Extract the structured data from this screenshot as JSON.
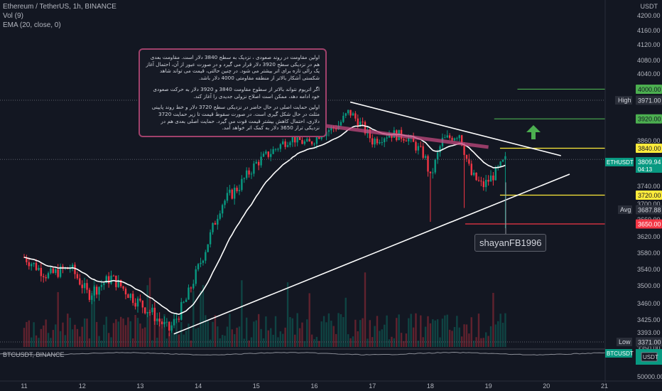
{
  "header": {
    "symbol_line": "Ethereum / TetherUS, 1h, BINANCE",
    "vol_line": "Vol (9)",
    "ema_line": "EMA (20, close, 0)",
    "sub_pane_title": "BTCUSDT, BINANCE"
  },
  "annotation": {
    "paragraphs": [
      "اولین مقاومت در روند صعودی ، نزدیک به سطح 3840 دلار است. مقاومت بعدی هم در نزدیکی سطح 3920 دلار قرار می گیرد و در صورت عبور از آن، احتمال آغاز یک رالی تازه برای اتر بیشتر می شود. در چنین حالتی، قیمت می تواند شاهد شکستی آشکار بالاتر از منطقه مقاومتی 4000 دلار باشد.",
      "اگر اتریوم نتواند بالاتر از سطوح مقاومت 3840 و 3920 دلار به حرکت صعودی خود ادامه دهد، ممکن است اصلاح نزولی جدیدی را آغاز کند.",
      "اولین حمایت اصلی در حال حاضر در نزدیکی سطح 3720 دلار و خط روند پایینی مثلث در حال شکل گیری است. در صورت سقوط قیمت تا زیر حمایت 3720 دلاری، احتمال کاهش بیشتر قیمت قوت می گیرد. حمایت اصلی بعدی هم در نزدیکی تراز 3650 دلار به کمک اتر خواهد آمد."
    ]
  },
  "watermark": "shayanFB1996",
  "axis": {
    "currency_label": "USDT",
    "price_ticks": [
      "4200.00",
      "4160.00",
      "4120.00",
      "4080.00",
      "4040.00",
      "3860.00",
      "3780.00",
      "3740.00",
      "3700.00",
      "3660.00",
      "3620.00",
      "3580.00",
      "3540.00",
      "3500.00",
      "3460.00",
      "3425.00",
      "3393.00",
      "3350.00"
    ],
    "btc_ticks": [
      "50000.00"
    ],
    "date_ticks": [
      "11",
      "12",
      "13",
      "14",
      "15",
      "16",
      "17",
      "18",
      "19",
      "20",
      "21"
    ]
  },
  "level_labels": [
    {
      "text": "4000.00",
      "color": "#4caf50"
    },
    {
      "text": "3920.00",
      "color": "#4caf50"
    },
    {
      "text": "3840.00",
      "color": "#ffeb3b"
    },
    {
      "text": "3720.00",
      "color": "#ffeb3b"
    },
    {
      "text": "3650.00",
      "color": "#f23645"
    }
  ],
  "badges": {
    "high_label": "High",
    "high_value": "3971.00",
    "symbol_label": "ETHUSDT",
    "last_value": "3809.94",
    "countdown": "04:13",
    "avg_label": "Avg",
    "avg_value": "3687.88",
    "low_label": "Low",
    "low_value": "3371.00",
    "btc_label": "BTCUSDT",
    "btc_currency": "USDT"
  },
  "colors": {
    "background": "#131722",
    "up": "#089981",
    "down": "#f23645",
    "ema": "#ffffff",
    "trendline": "#ffffff",
    "resistance_line": "#c2497e",
    "level_green": "#4caf50",
    "level_yellow": "#ffeb3b",
    "level_red": "#f23645",
    "arrow": "#4caf50"
  },
  "chart_data": {
    "type": "candlestick",
    "title": "Ethereum / TetherUS, 1h, BINANCE",
    "x_axis_labels": [
      "11",
      "12",
      "13",
      "14",
      "15",
      "16",
      "17",
      "18",
      "19",
      "20",
      "21"
    ],
    "ylim": [
      3350,
      4240
    ],
    "ema_period": 20,
    "close_path": [
      {
        "date": 11.0,
        "close": 3570
      },
      {
        "date": 11.4,
        "close": 3525
      },
      {
        "date": 11.8,
        "close": 3545
      },
      {
        "date": 12.1,
        "close": 3480
      },
      {
        "date": 12.5,
        "close": 3520
      },
      {
        "date": 12.9,
        "close": 3470
      },
      {
        "date": 13.2,
        "close": 3440
      },
      {
        "date": 13.5,
        "close": 3400
      },
      {
        "date": 13.8,
        "close": 3470
      },
      {
        "date": 14.1,
        "close": 3580
      },
      {
        "date": 14.4,
        "close": 3700
      },
      {
        "date": 14.7,
        "close": 3740
      },
      {
        "date": 15.0,
        "close": 3800
      },
      {
        "date": 15.3,
        "close": 3835
      },
      {
        "date": 15.6,
        "close": 3870
      },
      {
        "date": 15.9,
        "close": 3850
      },
      {
        "date": 16.1,
        "close": 3880
      },
      {
        "date": 16.4,
        "close": 3900
      },
      {
        "date": 16.6,
        "close": 3940
      },
      {
        "date": 16.8,
        "close": 3905
      },
      {
        "date": 17.0,
        "close": 3860
      },
      {
        "date": 17.3,
        "close": 3880
      },
      {
        "date": 17.6,
        "close": 3870
      },
      {
        "date": 17.9,
        "close": 3820
      },
      {
        "date": 18.0,
        "close": 3760
      },
      {
        "date": 18.2,
        "close": 3860
      },
      {
        "date": 18.5,
        "close": 3880
      },
      {
        "date": 18.7,
        "close": 3770
      },
      {
        "date": 18.9,
        "close": 3740
      },
      {
        "date": 19.1,
        "close": 3770
      },
      {
        "date": 19.3,
        "close": 3810
      }
    ],
    "indicators": {
      "high": 3971.0,
      "low": 3371.0,
      "avg": 3687.88,
      "last": 3809.94
    },
    "levels": [
      {
        "price": 4000,
        "color": "green",
        "start": 19.5
      },
      {
        "price": 3920,
        "color": "green",
        "start": 19.1
      },
      {
        "price": 3840,
        "color": "yellow",
        "start": 19.2
      },
      {
        "price": 3720,
        "color": "yellow",
        "start": 19.2
      },
      {
        "price": 3650,
        "color": "red",
        "start": 18.6
      }
    ],
    "trendlines": [
      {
        "name": "upper",
        "from": {
          "date": 16.62,
          "price": 3966
        },
        "to": {
          "date": 20.25,
          "price": 3820
        }
      },
      {
        "name": "lower",
        "from": {
          "date": 13.58,
          "price": 3390
        },
        "to": {
          "date": 20.4,
          "price": 3771
        }
      },
      {
        "name": "resistance",
        "from": {
          "date": 16.0,
          "price": 3905
        },
        "to": {
          "date": 19.0,
          "price": 3843
        }
      }
    ],
    "sub_chart": {
      "symbol": "BTCUSDT",
      "exchange": "BINANCE",
      "y_ticks": [
        50000
      ]
    }
  }
}
